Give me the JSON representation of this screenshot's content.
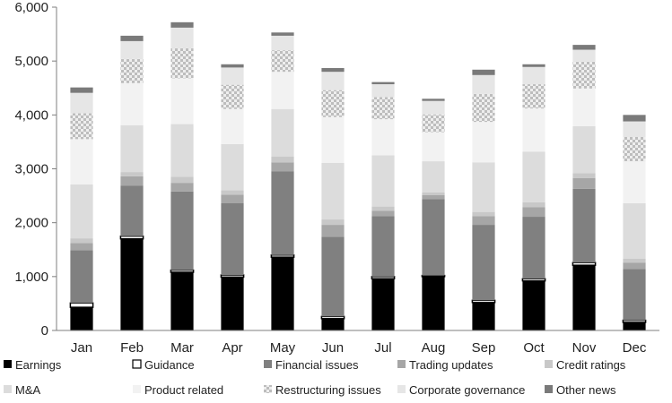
{
  "chart_data": {
    "type": "bar",
    "stacked": true,
    "title": "",
    "xlabel": "",
    "ylabel": "",
    "ylim": [
      0,
      6000
    ],
    "yticks": [
      0,
      1000,
      2000,
      3000,
      4000,
      5000,
      6000
    ],
    "ytick_labels": [
      "0",
      "1,000",
      "2,000",
      "3,000",
      "4,000",
      "5,000",
      "6,000"
    ],
    "grid": false,
    "legend_position": "bottom",
    "categories": [
      "Jan",
      "Feb",
      "Mar",
      "Apr",
      "May",
      "Jun",
      "Jul",
      "Aug",
      "Sep",
      "Oct",
      "Nov",
      "Dec"
    ],
    "series": [
      {
        "name": "Earnings",
        "color": "#000000",
        "values": [
          430,
          1700,
          1080,
          990,
          1360,
          220,
          960,
          1000,
          520,
          920,
          1210,
          150
        ]
      },
      {
        "name": "Guidance",
        "color": "#ffffff",
        "values": [
          80,
          50,
          40,
          40,
          40,
          40,
          40,
          20,
          40,
          40,
          50,
          40
        ]
      },
      {
        "name": "Financial issues",
        "color": "#808080",
        "values": [
          980,
          940,
          1460,
          1330,
          1550,
          1480,
          1120,
          1420,
          1400,
          1150,
          1370,
          950
        ]
      },
      {
        "name": "Trading updates",
        "color": "#a6a6a6",
        "values": [
          130,
          170,
          160,
          160,
          170,
          220,
          100,
          70,
          160,
          180,
          200,
          120
        ]
      },
      {
        "name": "Credit ratings",
        "color": "#c8c8c8",
        "values": [
          90,
          80,
          110,
          80,
          110,
          100,
          80,
          50,
          80,
          90,
          90,
          70
        ]
      },
      {
        "name": "M&A",
        "color": "#dcdcdc",
        "values": [
          1000,
          870,
          980,
          860,
          880,
          1050,
          950,
          580,
          920,
          940,
          870,
          1030
        ]
      },
      {
        "name": "Product related",
        "color": "#f2f2f2",
        "values": [
          840,
          780,
          850,
          650,
          690,
          850,
          670,
          540,
          750,
          800,
          700,
          780
        ]
      },
      {
        "name": "Restructuring issues",
        "color": "#bfbfbf",
        "pattern": "checker",
        "values": [
          480,
          450,
          560,
          450,
          400,
          500,
          410,
          330,
          520,
          450,
          500,
          450
        ]
      },
      {
        "name": "Corporate governance",
        "color": "#e6e6e6",
        "values": [
          380,
          330,
          380,
          320,
          270,
          340,
          240,
          250,
          350,
          320,
          220,
          290
        ]
      },
      {
        "name": "Other news",
        "color": "#7a7a7a",
        "values": [
          100,
          100,
          100,
          60,
          60,
          70,
          40,
          40,
          100,
          50,
          90,
          120
        ]
      }
    ]
  }
}
